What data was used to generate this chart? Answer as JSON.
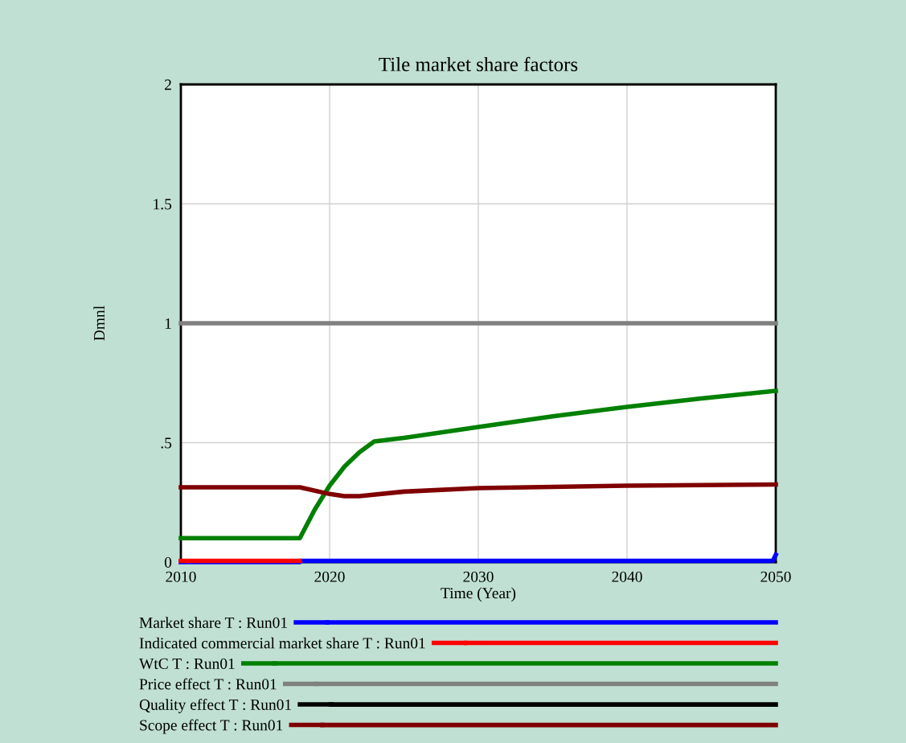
{
  "chart_data": {
    "type": "line",
    "title": "Tile market share factors",
    "xlabel": "Time (Year)",
    "ylabel": "Dmnl",
    "xlim": [
      2010,
      2050
    ],
    "ylim": [
      0,
      2
    ],
    "xticks": [
      2010,
      2020,
      2030,
      2040,
      2050
    ],
    "yticks": [
      0,
      {
        "value": 0.5,
        "label": ".5"
      },
      1,
      1.5,
      2
    ],
    "grid": true,
    "legend": "bottom",
    "line_style": "solid",
    "marker": "none",
    "series": [
      {
        "name": "Market share T : Run01",
        "color": "#0000ff",
        "x": [
          2010,
          2018,
          2018,
          2049.8,
          2050
        ],
        "values": [
          0,
          0,
          0.005,
          0.005,
          0.03
        ]
      },
      {
        "name": "Indicated commercial market share T : Run01",
        "color": "#ff0000",
        "x": [
          2010,
          2018
        ],
        "values": [
          0.005,
          0.005
        ]
      },
      {
        "name": "WtC T : Run01",
        "color": "#008000",
        "x": [
          2010,
          2018,
          2019,
          2020,
          2021,
          2022,
          2023,
          2025,
          2030,
          2035,
          2040,
          2045,
          2050
        ],
        "values": [
          0.1,
          0.1,
          0.22,
          0.32,
          0.4,
          0.46,
          0.505,
          0.52,
          0.566,
          0.61,
          0.65,
          0.685,
          0.717
        ]
      },
      {
        "name": "Price effect T : Run01",
        "color": "#808080",
        "x": [
          2010,
          2050
        ],
        "values": [
          1,
          1
        ]
      },
      {
        "name": "Quality effect T : Run01",
        "color": "#000000",
        "values": [
          null
        ]
      },
      {
        "name": "Scope effect T : Run01",
        "color": "#800000",
        "x": [
          2010,
          2018,
          2020,
          2021,
          2022,
          2025,
          2030,
          2040,
          2050
        ],
        "values": [
          0.313,
          0.313,
          0.285,
          0.276,
          0.276,
          0.295,
          0.31,
          0.32,
          0.325
        ]
      }
    ]
  }
}
